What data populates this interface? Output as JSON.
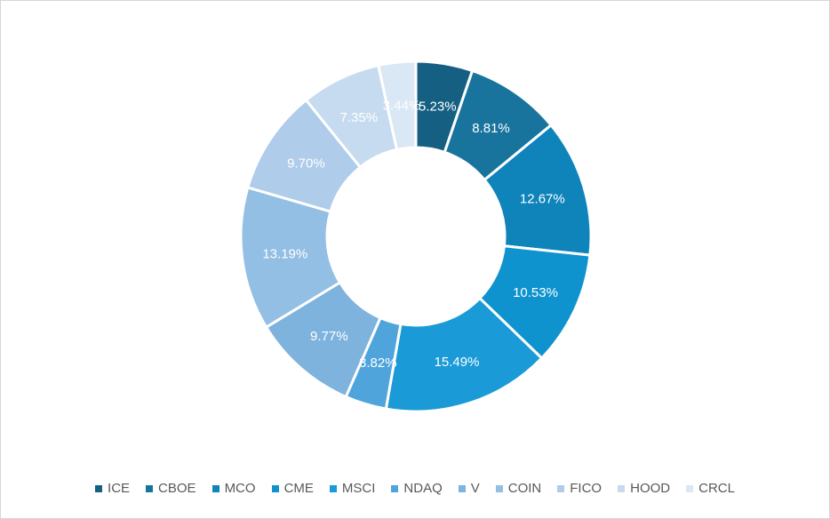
{
  "chart": {
    "background_color": "#FFFFFF",
    "frame_border_color": "#D6D6D6",
    "title": ""
  },
  "chart_data": {
    "type": "pie",
    "subtype": "donut",
    "title": "",
    "categories": [
      "ICE",
      "CBOE",
      "MCO",
      "CME",
      "MSCI",
      "NDAQ",
      "V",
      "COIN",
      "FICO",
      "HOOD",
      "CRCL"
    ],
    "values": [
      5.23,
      8.81,
      12.67,
      10.53,
      15.49,
      3.82,
      9.77,
      13.19,
      9.7,
      7.35,
      3.44
    ],
    "data_labels": [
      "5.23%",
      "8.81%",
      "12.67%",
      "10.53%",
      "15.49%",
      "3.82%",
      "9.77%",
      "13.19%",
      "9.70%",
      "7.35%",
      "3.44%"
    ],
    "colors": [
      "#156082",
      "#19749D",
      "#0E84BB",
      "#0F93CE",
      "#1A9AD7",
      "#4FA5DB",
      "#7EB3DE",
      "#93BFE4",
      "#AFCCEA",
      "#C7DBF0",
      "#DAE7F4"
    ],
    "start_angle_deg": 0,
    "direction": "clockwise",
    "donut_hole_ratio": 0.51,
    "slice_border_color": "#FFFFFF",
    "data_label_color": "#FFFFFF",
    "legend_position": "bottom",
    "legend_text_color": "#595959",
    "grid": false
  }
}
